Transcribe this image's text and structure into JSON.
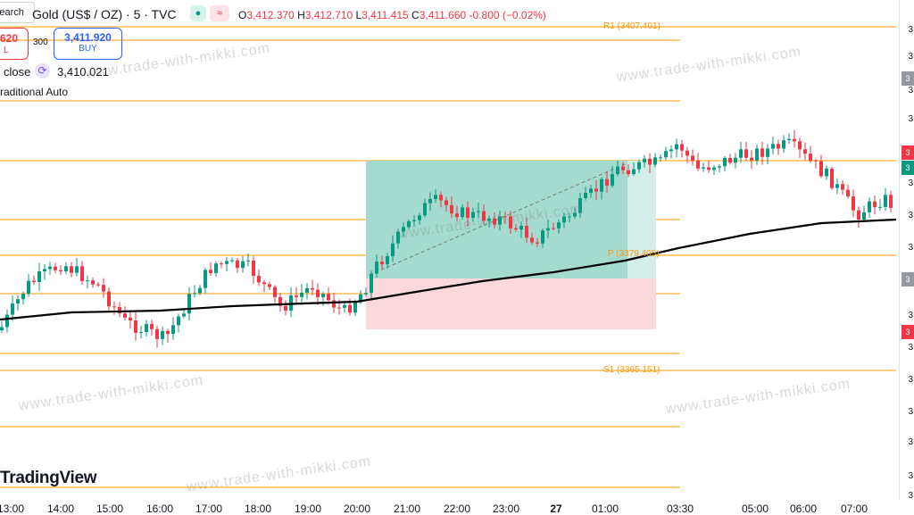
{
  "header": {
    "search_label": "Search",
    "symbol": "Gold (US$ / OZ) · 5 · TVC",
    "badge_eye": "●",
    "badge_wave": "≈",
    "ohlc": {
      "o_label": "O",
      "o": "3,412.370",
      "h_label": "H",
      "h": "3,412.710",
      "l_label": "L",
      "l": "3,411.415",
      "c_label": "C",
      "c": "3,411.660",
      "change": "-0.800 (−0.02%)"
    }
  },
  "trade": {
    "sell_price": "620",
    "sell_sub": "L",
    "spread": "300",
    "buy_price": "3,411.920",
    "buy_label": "BUY"
  },
  "indicator": {
    "close_label": "close",
    "close_icon": "cycle-icon",
    "close_value": "3,410.021",
    "pivot_label": "raditional Auto"
  },
  "levels": {
    "r1": "R1 (3407.401)",
    "p": "P (3379.405)",
    "s1": "S1 (3365.151)"
  },
  "watermark": "www.trade-with-mikki.com",
  "logo": "TradingView",
  "xaxis": [
    "13:00",
    "14:00",
    "15:00",
    "16:00",
    "17:00",
    "18:00",
    "19:00",
    "20:00",
    "21:00",
    "22:00",
    "23:00",
    "27",
    "01:00",
    "03:30",
    "05:00",
    "06:00",
    "07:00"
  ],
  "right_scale": {
    "labels": [
      "3",
      "3",
      "3",
      "3",
      "3",
      "3",
      "3",
      "3",
      "3",
      "3",
      "3",
      "3",
      "3",
      "3",
      "3"
    ],
    "tags": [
      "3",
      "3",
      "3",
      "3",
      "3"
    ]
  },
  "colors": {
    "up": "#089981",
    "down": "#f23645",
    "level": "#ff9800",
    "profit_zone": "#a5dbcf",
    "loss_zone": "#fbd8dc",
    "ma": "#000000"
  }
}
